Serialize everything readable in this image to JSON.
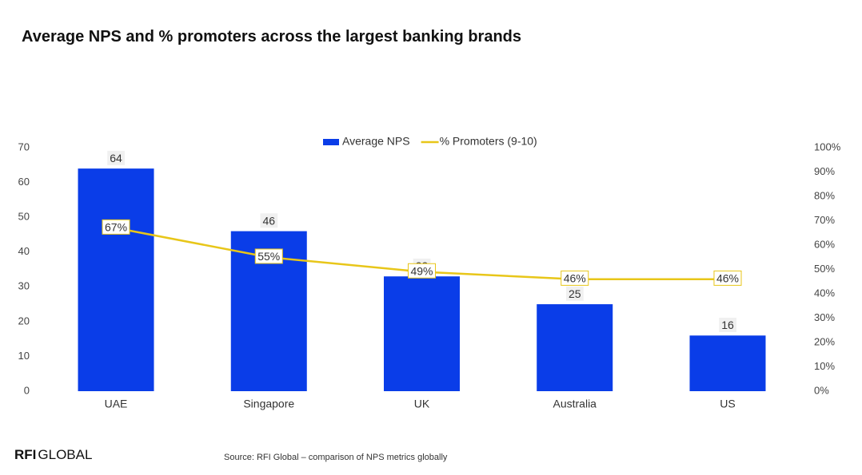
{
  "chart_data": {
    "type": "combo",
    "title": "Average NPS and % promoters across the largest banking brands",
    "source": "Source: RFI Global – comparison of NPS metrics globally",
    "categories": [
      "UAE",
      "Singapore",
      "UK",
      "Australia",
      "US"
    ],
    "series": [
      {
        "name": "Average NPS",
        "type": "bar",
        "color": "#0a3de8",
        "values": [
          64,
          46,
          33,
          25,
          16
        ]
      },
      {
        "name": "% Promoters (9-10)",
        "type": "line",
        "axis": "y2",
        "color": "#e8c619",
        "values": [
          67,
          55,
          49,
          46,
          46
        ],
        "value_labels": [
          "67%",
          "55%",
          "49%",
          "46%",
          "46%"
        ]
      }
    ],
    "ylim": [
      0,
      70
    ],
    "yticks": [
      0,
      10,
      20,
      30,
      40,
      50,
      60,
      70
    ],
    "y2lim": [
      0,
      100
    ],
    "y2ticks": [
      {
        "value": 0,
        "label": "0%"
      },
      {
        "value": 10,
        "label": "10%"
      },
      {
        "value": 20,
        "label": "20%"
      },
      {
        "value": 30,
        "label": "30%"
      },
      {
        "value": 40,
        "label": "40%"
      },
      {
        "value": 50,
        "label": "50%"
      },
      {
        "value": 60,
        "label": "60%"
      },
      {
        "value": 70,
        "label": "70%"
      },
      {
        "value": 80,
        "label": "80%"
      },
      {
        "value": 90,
        "label": "90%"
      },
      {
        "value": 100,
        "label": "100%"
      }
    ],
    "grid": false,
    "legend": "top"
  },
  "brand": [
    "RFI",
    "GLOBAL"
  ]
}
